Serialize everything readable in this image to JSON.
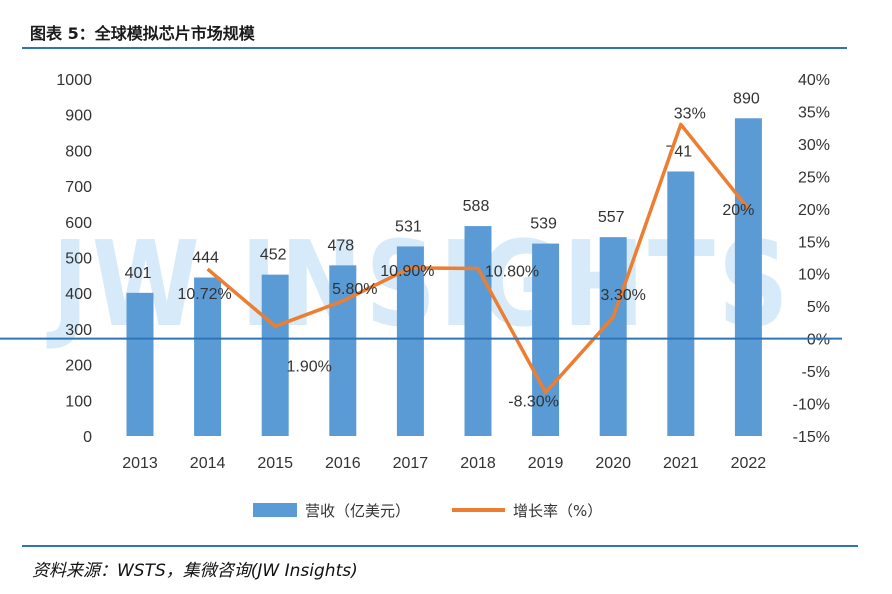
{
  "figure": {
    "title": "图表 5：全球模拟芯片市场规模",
    "source": "资料来源：WSTS，集微咨询(JW Insights)",
    "watermark": "JW INSIGHTS"
  },
  "colors": {
    "bar": "#5b9bd5",
    "line": "#ed7d31",
    "rule": "#2f74b5"
  },
  "chart_data": {
    "type": "bar",
    "categories": [
      "2013",
      "2014",
      "2015",
      "2016",
      "2017",
      "2018",
      "2019",
      "2020",
      "2021",
      "2022"
    ],
    "series": [
      {
        "name": "营收（亿美元）",
        "type": "bar",
        "axis": "left",
        "values": [
          401,
          444,
          452,
          478,
          531,
          588,
          539,
          557,
          741,
          890
        ],
        "labels": [
          "401",
          "444",
          "452",
          "478",
          "531",
          "588",
          "539",
          "557",
          "741",
          "890"
        ]
      },
      {
        "name": "增长率（%）",
        "type": "line",
        "axis": "right",
        "values": [
          null,
          10.72,
          1.9,
          5.8,
          10.9,
          10.8,
          -8.3,
          3.3,
          33,
          20
        ],
        "labels": [
          "",
          "10.72%",
          "1.90%",
          "5.80%",
          "10.90%",
          "10.80%",
          "-8.30%",
          "3.30%",
          "33%",
          "20%"
        ]
      }
    ],
    "y_left": {
      "min": 0,
      "max": 1000,
      "step": 100,
      "ticks": [
        "0",
        "100",
        "200",
        "300",
        "400",
        "500",
        "600",
        "700",
        "800",
        "900",
        "1000"
      ]
    },
    "y_right": {
      "min": -15,
      "max": 40,
      "step": 5,
      "ticks": [
        "-15%",
        "-10%",
        "-5%",
        "0%",
        "5%",
        "10%",
        "15%",
        "20%",
        "25%",
        "30%",
        "35%",
        "40%"
      ]
    },
    "legend": {
      "position": "bottom",
      "items": [
        "营收（亿美元）",
        "增长率（%）"
      ]
    },
    "grid": false
  }
}
